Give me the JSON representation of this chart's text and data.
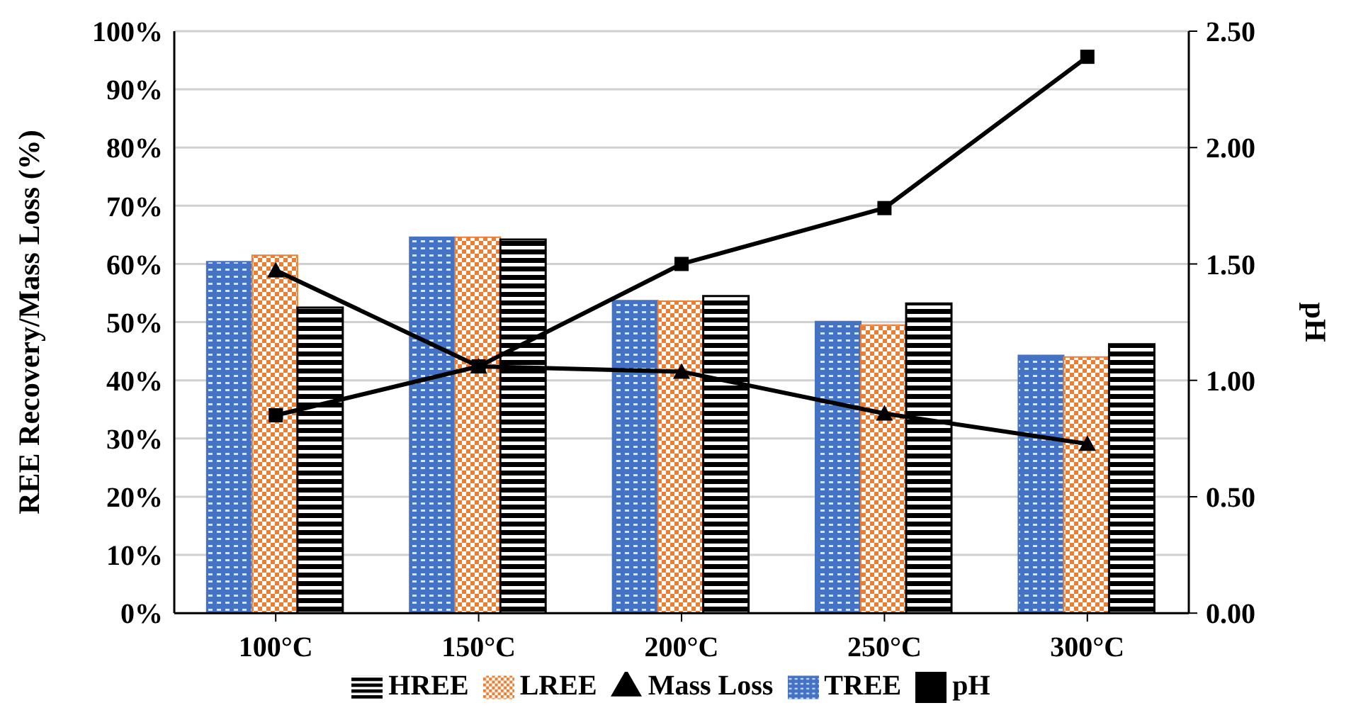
{
  "chart_data": {
    "type": "bar",
    "categories": [
      "100°C",
      "150°C",
      "200°C",
      "250°C",
      "300°C"
    ],
    "ylabel": "REE Recovery/Mass Loss (%)",
    "y2label": "pH",
    "ylim": [
      0,
      100
    ],
    "yticks": [
      {
        "value": 0,
        "label": "0%"
      },
      {
        "value": 10,
        "label": "10%"
      },
      {
        "value": 20,
        "label": "20%"
      },
      {
        "value": 30,
        "label": "30%"
      },
      {
        "value": 40,
        "label": "40%"
      },
      {
        "value": 50,
        "label": "50%"
      },
      {
        "value": 60,
        "label": "60%"
      },
      {
        "value": 70,
        "label": "70%"
      },
      {
        "value": 80,
        "label": "80%"
      },
      {
        "value": 90,
        "label": "90%"
      },
      {
        "value": 100,
        "label": "100%"
      }
    ],
    "y2lim": [
      0,
      2.5
    ],
    "y2ticks": [
      {
        "value": 0,
        "label": "0.00"
      },
      {
        "value": 0.5,
        "label": "0.50"
      },
      {
        "value": 1,
        "label": "1.00"
      },
      {
        "value": 1.5,
        "label": "1.50"
      },
      {
        "value": 2,
        "label": "2.00"
      },
      {
        "value": 2.5,
        "label": "2.50"
      }
    ],
    "grid": "y",
    "legend": "bottom",
    "series": [
      {
        "name": "TREE",
        "color": "#4472c4",
        "values": [
          60.4,
          64.6,
          53.7,
          50.1,
          44.3
        ]
      },
      {
        "name": "LREE",
        "color": "#ed7d31",
        "values": [
          61.5,
          64.6,
          53.6,
          49.5,
          44.0
        ]
      },
      {
        "name": "HREE",
        "color": "#000000",
        "values": [
          52.5,
          64.2,
          54.5,
          53.2,
          46.2
        ]
      },
      {
        "name": "Mass Loss",
        "type": "line",
        "color": "#000000",
        "marker": "triangle",
        "values": [
          58.9,
          42.4,
          41.5,
          34.3,
          29.1
        ]
      },
      {
        "name": "pH",
        "type": "line",
        "axis": "y2",
        "color": "#000000",
        "marker": "square",
        "values": [
          0.85,
          1.06,
          1.5,
          1.74,
          2.39
        ]
      }
    ]
  }
}
